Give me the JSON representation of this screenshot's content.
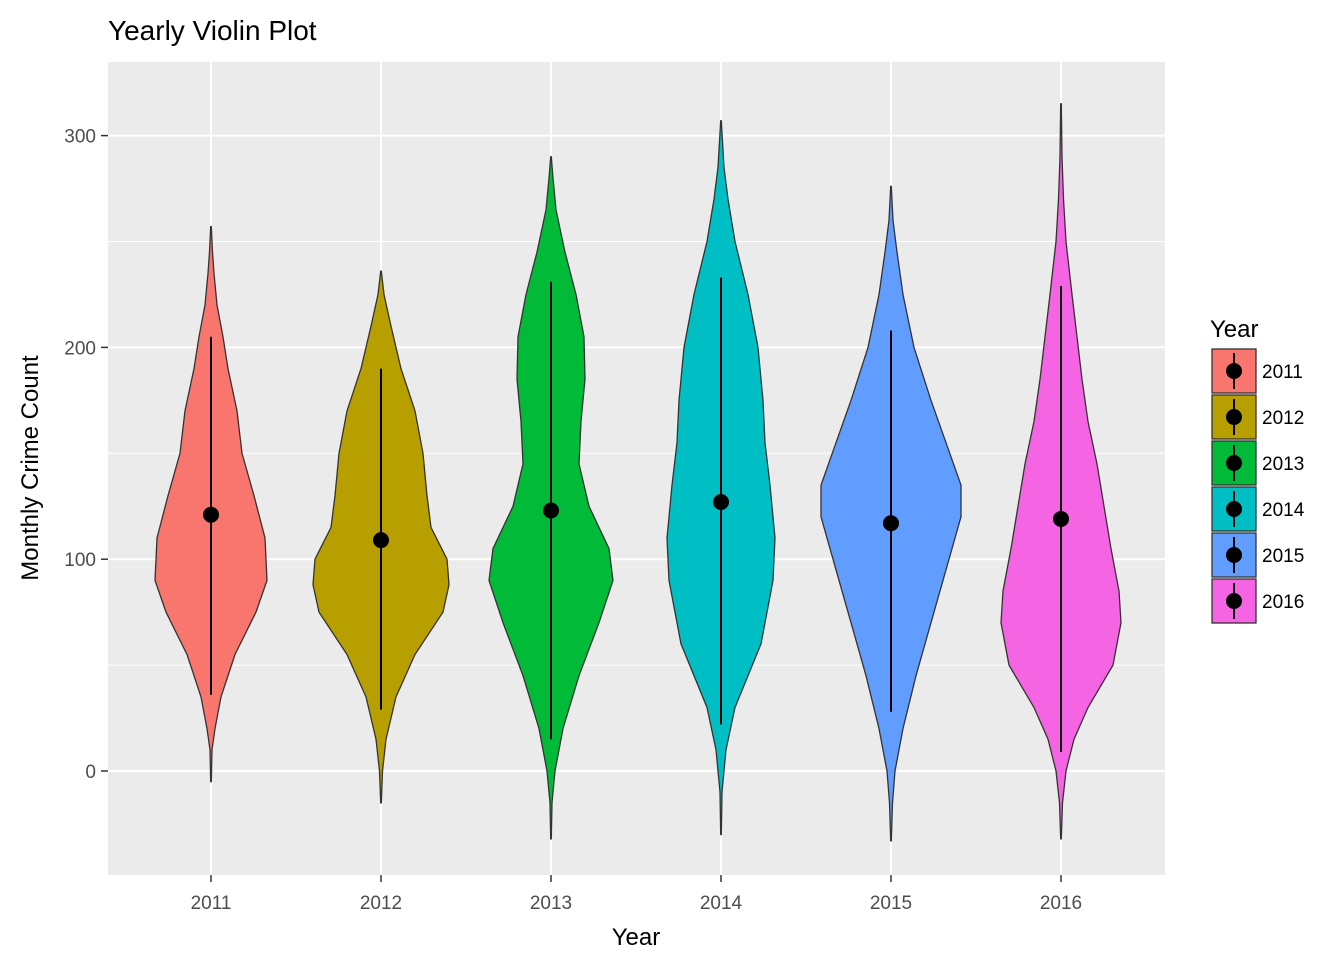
{
  "chart_data": {
    "type": "violin",
    "title": "Yearly Violin Plot",
    "xlabel": "Year",
    "ylabel": "Monthly Crime Count",
    "categories": [
      "2011",
      "2012",
      "2013",
      "2014",
      "2015",
      "2016"
    ],
    "y_ticks": [
      "0",
      "100",
      "200",
      "300"
    ],
    "ylim": [
      -50,
      335
    ],
    "grid": true,
    "legend": {
      "title": "Year",
      "placement": "right"
    },
    "colors": [
      "#F8766D",
      "#B79F00",
      "#00BA38",
      "#00BFC4",
      "#619CFF",
      "#F564E3"
    ],
    "series": [
      {
        "name": "2011",
        "range": [
          -5,
          257
        ],
        "mean": 121,
        "line": [
          36,
          205
        ],
        "profile": [
          [
            -5,
            0.3
          ],
          [
            10,
            1
          ],
          [
            20,
            4
          ],
          [
            35,
            10
          ],
          [
            55,
            24
          ],
          [
            75,
            45
          ],
          [
            90,
            56
          ],
          [
            110,
            54
          ],
          [
            130,
            43
          ],
          [
            150,
            31
          ],
          [
            170,
            26
          ],
          [
            190,
            17
          ],
          [
            205,
            12
          ],
          [
            220,
            6
          ],
          [
            235,
            3
          ],
          [
            245,
            1.5
          ],
          [
            257,
            0.3
          ]
        ]
      },
      {
        "name": "2012",
        "range": [
          -15,
          236
        ],
        "mean": 109,
        "line": [
          29,
          190
        ],
        "profile": [
          [
            -15,
            0.3
          ],
          [
            0,
            1.5
          ],
          [
            15,
            5
          ],
          [
            35,
            15
          ],
          [
            55,
            34
          ],
          [
            75,
            62
          ],
          [
            88,
            68
          ],
          [
            100,
            66
          ],
          [
            115,
            50
          ],
          [
            130,
            46
          ],
          [
            150,
            42
          ],
          [
            170,
            34
          ],
          [
            190,
            20
          ],
          [
            210,
            10
          ],
          [
            225,
            3
          ],
          [
            236,
            0.3
          ]
        ]
      },
      {
        "name": "2013",
        "range": [
          -32,
          290
        ],
        "mean": 123,
        "line": [
          15,
          231
        ],
        "profile": [
          [
            -32,
            0.3
          ],
          [
            -15,
            1
          ],
          [
            0,
            4
          ],
          [
            20,
            12
          ],
          [
            45,
            28
          ],
          [
            70,
            48
          ],
          [
            90,
            62
          ],
          [
            105,
            58
          ],
          [
            125,
            38
          ],
          [
            145,
            28
          ],
          [
            165,
            30
          ],
          [
            185,
            34
          ],
          [
            205,
            33
          ],
          [
            225,
            25
          ],
          [
            245,
            14
          ],
          [
            265,
            5
          ],
          [
            280,
            2
          ],
          [
            290,
            0.3
          ]
        ]
      },
      {
        "name": "2014",
        "range": [
          -30,
          307
        ],
        "mean": 127,
        "line": [
          22,
          233
        ],
        "profile": [
          [
            -30,
            0.3
          ],
          [
            -10,
            1
          ],
          [
            10,
            5
          ],
          [
            30,
            14
          ],
          [
            60,
            40
          ],
          [
            90,
            52
          ],
          [
            110,
            54
          ],
          [
            135,
            49
          ],
          [
            155,
            44
          ],
          [
            175,
            42
          ],
          [
            200,
            37
          ],
          [
            225,
            27
          ],
          [
            250,
            14
          ],
          [
            270,
            7
          ],
          [
            285,
            3
          ],
          [
            307,
            0.3
          ]
        ]
      },
      {
        "name": "2015",
        "range": [
          -33,
          276
        ],
        "mean": 117,
        "line": [
          28,
          208
        ],
        "profile": [
          [
            -33,
            0.3
          ],
          [
            -15,
            1.5
          ],
          [
            0,
            4
          ],
          [
            20,
            12
          ],
          [
            45,
            25
          ],
          [
            70,
            40
          ],
          [
            95,
            55
          ],
          [
            120,
            70
          ],
          [
            135,
            70
          ],
          [
            155,
            55
          ],
          [
            175,
            40
          ],
          [
            200,
            23
          ],
          [
            225,
            12
          ],
          [
            245,
            6
          ],
          [
            260,
            2
          ],
          [
            276,
            0.3
          ]
        ]
      },
      {
        "name": "2016",
        "range": [
          -32,
          315
        ],
        "mean": 119,
        "line": [
          9,
          229
        ],
        "profile": [
          [
            -32,
            0.3
          ],
          [
            -15,
            1.5
          ],
          [
            0,
            5
          ],
          [
            15,
            13
          ],
          [
            30,
            27
          ],
          [
            50,
            52
          ],
          [
            70,
            60
          ],
          [
            85,
            58
          ],
          [
            105,
            50
          ],
          [
            125,
            43
          ],
          [
            145,
            36
          ],
          [
            165,
            27
          ],
          [
            185,
            21
          ],
          [
            205,
            16
          ],
          [
            225,
            11
          ],
          [
            250,
            5
          ],
          [
            270,
            2.5
          ],
          [
            290,
            1
          ],
          [
            315,
            0.3
          ]
        ]
      }
    ]
  }
}
